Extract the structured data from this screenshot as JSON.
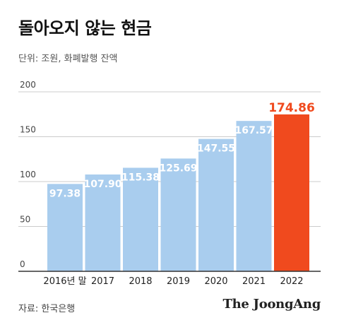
{
  "header": {
    "title": "돌아오지 않는 현금",
    "unit": "단위: 조원, 화폐발행 잔액"
  },
  "footer": {
    "source": "자료: 한국은행",
    "brand": "The JoongAng"
  },
  "colors": {
    "bar": "#a9cdee",
    "highlight": "#f04a1e",
    "grid": "#cccccc",
    "axis": "#333333",
    "label": "#ffffff"
  },
  "chart_data": {
    "type": "bar",
    "categories": [
      "2016년 말",
      "2017",
      "2018",
      "2019",
      "2020",
      "2021",
      "2022"
    ],
    "values": [
      97.38,
      107.9,
      115.38,
      125.69,
      147.55,
      167.57,
      174.86
    ],
    "value_labels": [
      "97.38",
      "107.90",
      "115.38",
      "125.69",
      "147.55",
      "167.57",
      "174.86"
    ],
    "highlight_index": 6,
    "ylim": [
      0,
      200
    ],
    "yticks": [
      0,
      50,
      100,
      150,
      200
    ],
    "grid": true,
    "legend": "none",
    "title": "돌아오지 않는 현금",
    "xlabel": "",
    "ylabel": ""
  }
}
